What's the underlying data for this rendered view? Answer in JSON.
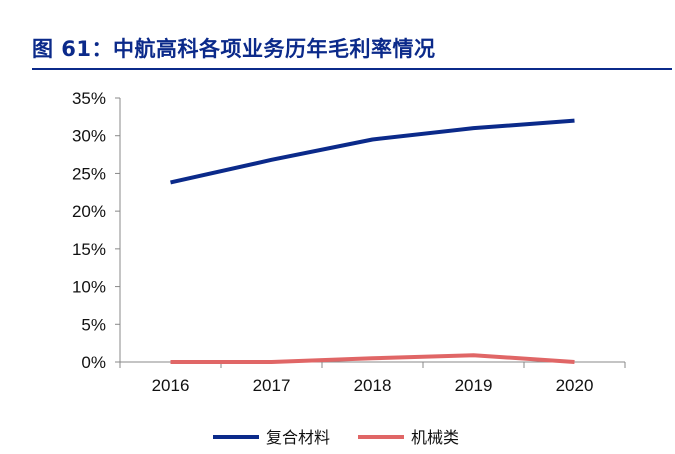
{
  "title": "图 61：中航高科各项业务历年毛利率情况",
  "chart_data": {
    "type": "line",
    "categories": [
      "2016",
      "2017",
      "2018",
      "2019",
      "2020"
    ],
    "series": [
      {
        "name": "复合材料",
        "color": "#0b2a8a",
        "values": [
          23.8,
          26.8,
          29.5,
          31.0,
          32.0
        ]
      },
      {
        "name": "机械类",
        "color": "#e06666",
        "values": [
          0.0,
          0.0,
          0.5,
          0.9,
          0.0
        ]
      }
    ],
    "ylim": [
      0,
      35
    ],
    "yticks": [
      "0%",
      "5%",
      "10%",
      "15%",
      "20%",
      "25%",
      "30%",
      "35%"
    ],
    "ytick_values": [
      0,
      5,
      10,
      15,
      20,
      25,
      30,
      35
    ],
    "y_unit": "%",
    "grid": false,
    "legend": "bottom-center"
  }
}
